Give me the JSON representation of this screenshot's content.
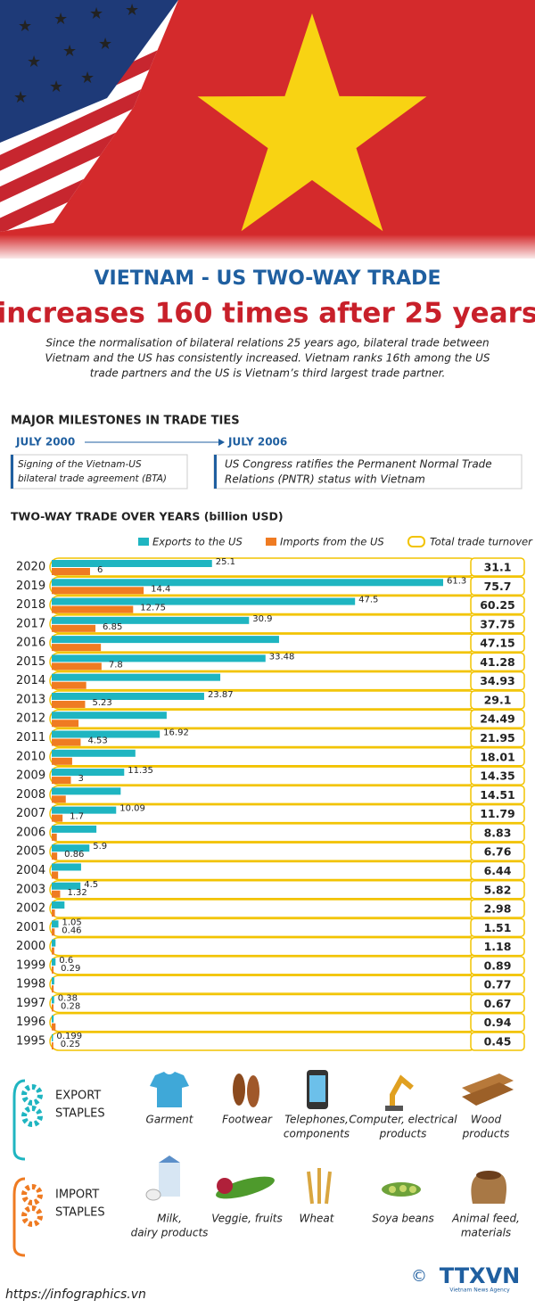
{
  "header": {
    "title": "VIETNAM - US TWO-WAY TRADE",
    "subtitle": "increases 160 times after 25 years",
    "intro": [
      "Since the normalisation of bilateral relations 25 years ago, bilateral trade between",
      "Vietnam and the US has consistently increased. Vietnam ranks 16th among the US",
      "trade partners and the US is Vietnam’s third largest trade partner."
    ]
  },
  "milestones": {
    "title": "MAJOR MILESTONES IN TRADE TIES",
    "items": [
      {
        "date": "JULY 2000",
        "text": [
          "Signing of the Vietnam-US",
          "bilateral trade agreement (BTA)"
        ]
      },
      {
        "date": "JULY 2006",
        "text": [
          "US Congress  ratifies the Permanent Normal Trade",
          "Relations (PNTR) status with Vietnam"
        ]
      }
    ]
  },
  "chart_data": {
    "type": "bar",
    "orientation": "horizontal",
    "title": "TWO-WAY TRADE OVER YEARS (billion USD)",
    "categories": [
      "2020",
      "2019",
      "2018",
      "2017",
      "2016",
      "2015",
      "2014",
      "2013",
      "2012",
      "2011",
      "2010",
      "2009",
      "2008",
      "2007",
      "2006",
      "2005",
      "2004",
      "2003",
      "2002",
      "2001",
      "2000",
      "1999",
      "1998",
      "1997",
      "1996",
      "1995"
    ],
    "series": [
      {
        "name": "Exports to the US",
        "color": "#1fb5c1",
        "values": [
          25.1,
          61.3,
          47.5,
          30.9,
          35.6,
          33.48,
          26.4,
          23.87,
          18.0,
          16.92,
          13.1,
          11.35,
          10.8,
          10.09,
          7.0,
          5.9,
          4.6,
          4.5,
          2.0,
          1.05,
          0.6,
          0.6,
          0.4,
          0.38,
          0.3,
          0.199
        ],
        "value_labels": [
          "25.1",
          "61.3",
          "47.5",
          "30.9",
          null,
          "33.48",
          null,
          "23.87",
          null,
          "16.92",
          null,
          "11.35",
          null,
          "10.09",
          null,
          "5.9",
          null,
          "4.5",
          null,
          "1.05",
          null,
          "0.6",
          null,
          "0.38",
          null,
          "0.199"
        ]
      },
      {
        "name": "Imports from the US",
        "color": "#ef7b22",
        "values": [
          6,
          14.4,
          12.75,
          6.85,
          7.7,
          7.8,
          5.4,
          5.23,
          4.2,
          4.53,
          3.2,
          3,
          2.2,
          1.7,
          0.8,
          0.86,
          1.0,
          1.32,
          0.5,
          0.46,
          0.4,
          0.29,
          0.3,
          0.28,
          0.6,
          0.25
        ],
        "value_labels": [
          "6",
          "14.4",
          "12.75",
          "6.85",
          null,
          "7.8",
          null,
          "5.23",
          null,
          "4.53",
          null,
          "3",
          null,
          "1.7",
          null,
          "0.86",
          null,
          "1.32",
          null,
          "0.46",
          null,
          "0.29",
          null,
          "0.28",
          null,
          "0.25"
        ]
      },
      {
        "name": "Total trade turnover",
        "color": "#f2c300",
        "values": [
          31.1,
          75.7,
          60.25,
          37.75,
          47.15,
          41.28,
          34.93,
          29.1,
          24.49,
          21.95,
          18.01,
          14.35,
          14.51,
          11.79,
          8.83,
          6.76,
          6.44,
          5.82,
          2.98,
          1.51,
          1.18,
          0.89,
          0.77,
          0.67,
          0.94,
          0.45
        ]
      }
    ]
  },
  "export_staples": {
    "title": [
      "EXPORT",
      "STAPLES"
    ],
    "items": [
      [
        "Garment"
      ],
      [
        "Footwear"
      ],
      [
        "Telephones,",
        "components"
      ],
      [
        "Computer, electrical",
        "products"
      ],
      [
        "Wood",
        "products"
      ]
    ]
  },
  "import_staples": {
    "title": [
      "IMPORT",
      "STAPLES"
    ],
    "items": [
      [
        "Milk,",
        "dairy products"
      ],
      [
        "Veggie, fruits"
      ],
      [
        "Wheat"
      ],
      [
        "Soya beans"
      ],
      [
        "Animal feed,",
        "materials"
      ]
    ]
  },
  "footer": {
    "url": "https://infographics.vn",
    "logo": "TTXVN",
    "logo_sub": "Vietnam News Agency",
    "copyright": "©"
  }
}
